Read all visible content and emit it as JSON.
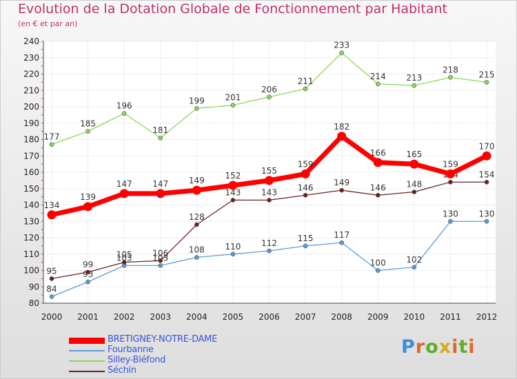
{
  "title": "Evolution de la Dotation Globale de Fonctionnement par Habitant",
  "subtitle": "(en € et par an)",
  "logo": {
    "text": "Proxiti",
    "colors": [
      "#3a8fd6",
      "#e0662c",
      "#5cae2b",
      "#d9a81e",
      "#e0662c",
      "#5cae2b",
      "#e0662c"
    ]
  },
  "chart_data": {
    "type": "line",
    "title": "Evolution de la Dotation Globale de Fonctionnement par Habitant",
    "subtitle": "(en € et par an)",
    "x": [
      "2000",
      "2001",
      "2002",
      "2003",
      "2004",
      "2005",
      "2006",
      "2007",
      "2008",
      "2009",
      "2010",
      "2011",
      "2012"
    ],
    "y_ticks": [
      "80",
      "90",
      "100",
      "110",
      "120",
      "130",
      "140",
      "150",
      "160",
      "170",
      "180",
      "190",
      "200",
      "210",
      "220",
      "230",
      "240"
    ],
    "ylim": [
      80,
      240
    ],
    "grid": true,
    "legend_position": "bottom-left",
    "series": [
      {
        "name": "Silley-Bléfond",
        "color": "#88d858",
        "values": [
          177,
          185,
          196,
          181,
          199,
          201,
          206,
          211,
          233,
          214,
          213,
          218,
          215
        ]
      },
      {
        "name": "Fourbanne",
        "color": "#5b9bd5",
        "values": [
          84,
          93,
          103,
          103,
          108,
          110,
          112,
          115,
          117,
          100,
          102,
          130,
          130
        ]
      },
      {
        "name": "Séchin",
        "color": "#6b2020",
        "values": [
          95,
          99,
          105,
          106,
          128,
          143,
          143,
          146,
          149,
          146,
          148,
          154,
          154
        ]
      },
      {
        "name": "BRETIGNEY-NOTRE-DAME",
        "color": "#ff0000",
        "values": [
          134,
          139,
          147,
          147,
          149,
          152,
          155,
          159,
          182,
          166,
          165,
          159,
          170
        ]
      }
    ],
    "legend": [
      "BRETIGNEY-NOTRE-DAME",
      "Fourbanne",
      "Silley-Bléfond",
      "Séchin"
    ]
  }
}
